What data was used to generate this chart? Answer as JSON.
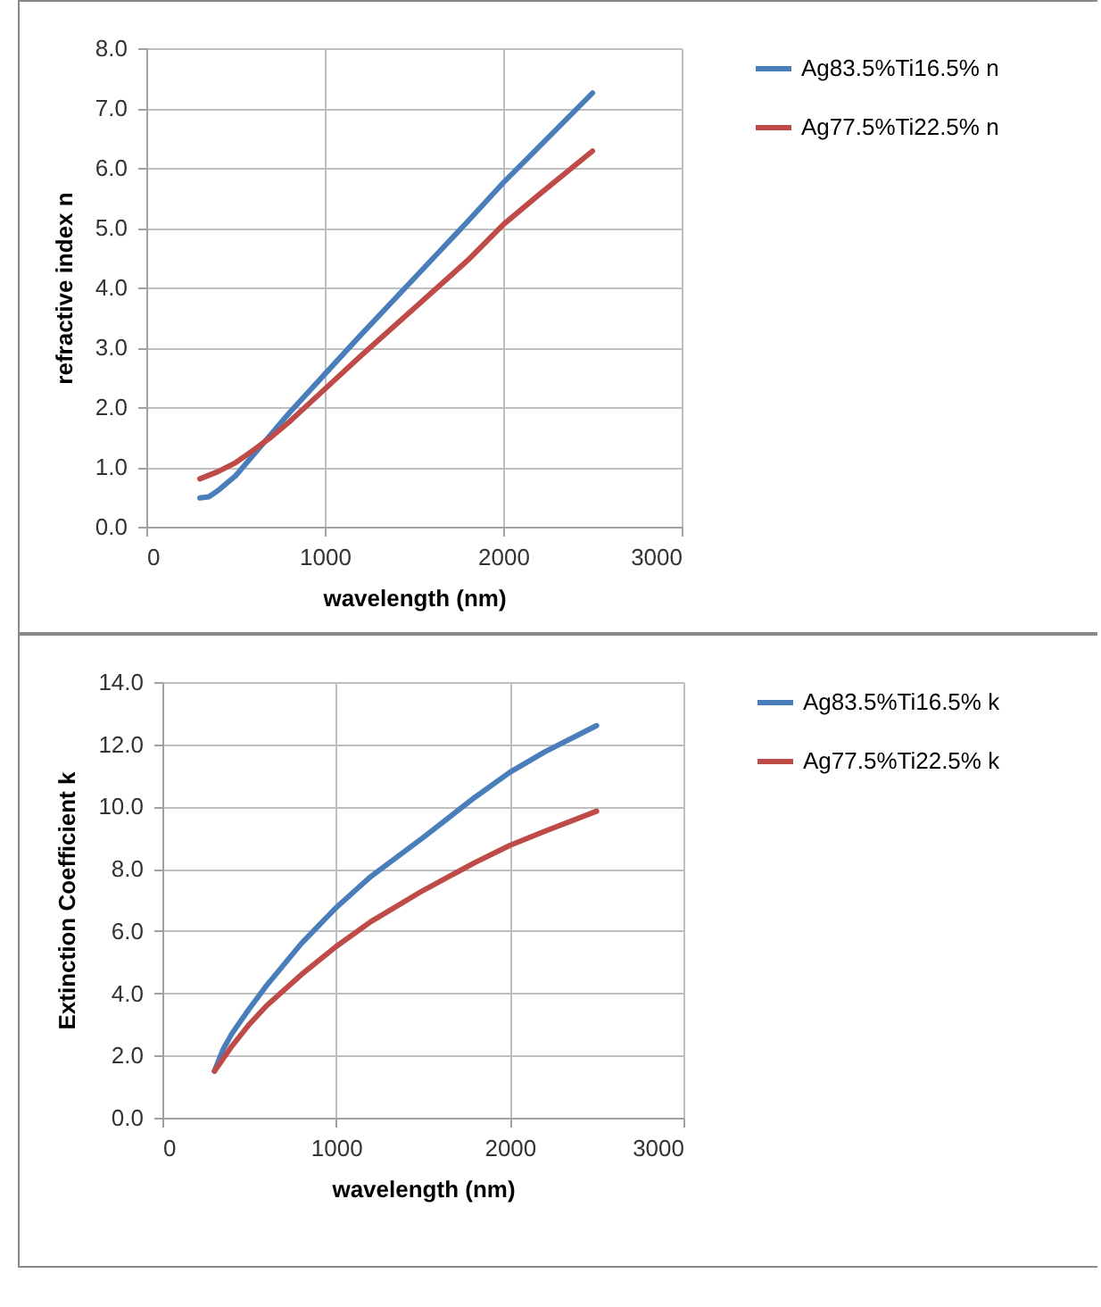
{
  "chart_data": [
    {
      "type": "line",
      "xlabel": "wavelength (nm)",
      "ylabel": "refractive index n",
      "xlim": [
        0,
        3000
      ],
      "xticks": [
        0,
        1000,
        2000,
        3000
      ],
      "ylim": [
        0,
        8
      ],
      "yticks": [
        {
          "value": 0,
          "label": "0.0"
        },
        {
          "value": 1,
          "label": "1.0"
        },
        {
          "value": 2,
          "label": "2.0"
        },
        {
          "value": 3,
          "label": "3.0"
        },
        {
          "value": 4,
          "label": "4.0"
        },
        {
          "value": 5,
          "label": "5.0"
        },
        {
          "value": 6,
          "label": "6.0"
        },
        {
          "value": 7,
          "label": "7.0"
        },
        {
          "value": 8,
          "label": "8.0"
        }
      ],
      "grid": true,
      "legend": "right",
      "series": [
        {
          "name": "Ag83.5%Ti16.5% n",
          "color": "#4a7ebb",
          "x": [
            300,
            350,
            400,
            500,
            600,
            700,
            800,
            1000,
            1200,
            1500,
            1800,
            2000,
            2200,
            2500
          ],
          "values": [
            0.48,
            0.5,
            0.6,
            0.85,
            1.2,
            1.55,
            1.9,
            2.55,
            3.2,
            4.15,
            5.1,
            5.75,
            6.35,
            7.25
          ]
        },
        {
          "name": "Ag77.5%Ti22.5% n",
          "color": "#be4b48",
          "x": [
            300,
            400,
            500,
            600,
            700,
            800,
            1000,
            1200,
            1500,
            1800,
            2000,
            2200,
            2500
          ],
          "values": [
            0.8,
            0.92,
            1.07,
            1.28,
            1.5,
            1.75,
            2.3,
            2.85,
            3.65,
            4.45,
            5.05,
            5.55,
            6.28
          ]
        }
      ]
    },
    {
      "type": "line",
      "xlabel": "wavelength (nm)",
      "ylabel": "Extinction Coefficient k",
      "xlim": [
        0,
        3000
      ],
      "xticks": [
        0,
        1000,
        2000,
        3000
      ],
      "ylim": [
        0,
        14
      ],
      "yticks": [
        {
          "value": 0,
          "label": "0.0"
        },
        {
          "value": 2,
          "label": "2.0"
        },
        {
          "value": 4,
          "label": "4.0"
        },
        {
          "value": 6,
          "label": "6.0"
        },
        {
          "value": 8,
          "label": "8.0"
        },
        {
          "value": 10,
          "label": "10.0"
        },
        {
          "value": 12,
          "label": "12.0"
        },
        {
          "value": 14,
          "label": "14.0"
        }
      ],
      "grid": true,
      "legend": "right",
      "series": [
        {
          "name": "Ag83.5%Ti16.5% k",
          "color": "#4a7ebb",
          "x": [
            300,
            350,
            400,
            500,
            600,
            800,
            1000,
            1200,
            1500,
            1800,
            2000,
            2200,
            2500
          ],
          "values": [
            1.5,
            2.2,
            2.7,
            3.5,
            4.25,
            5.6,
            6.75,
            7.75,
            9.0,
            10.3,
            11.1,
            11.75,
            12.6
          ]
        },
        {
          "name": "Ag77.5%Ti22.5% k",
          "color": "#be4b48",
          "x": [
            300,
            400,
            500,
            600,
            800,
            1000,
            1200,
            1500,
            1800,
            2000,
            2200,
            2500
          ],
          "values": [
            1.5,
            2.3,
            3.0,
            3.6,
            4.6,
            5.5,
            6.3,
            7.3,
            8.2,
            8.75,
            9.2,
            9.85
          ]
        }
      ]
    }
  ]
}
